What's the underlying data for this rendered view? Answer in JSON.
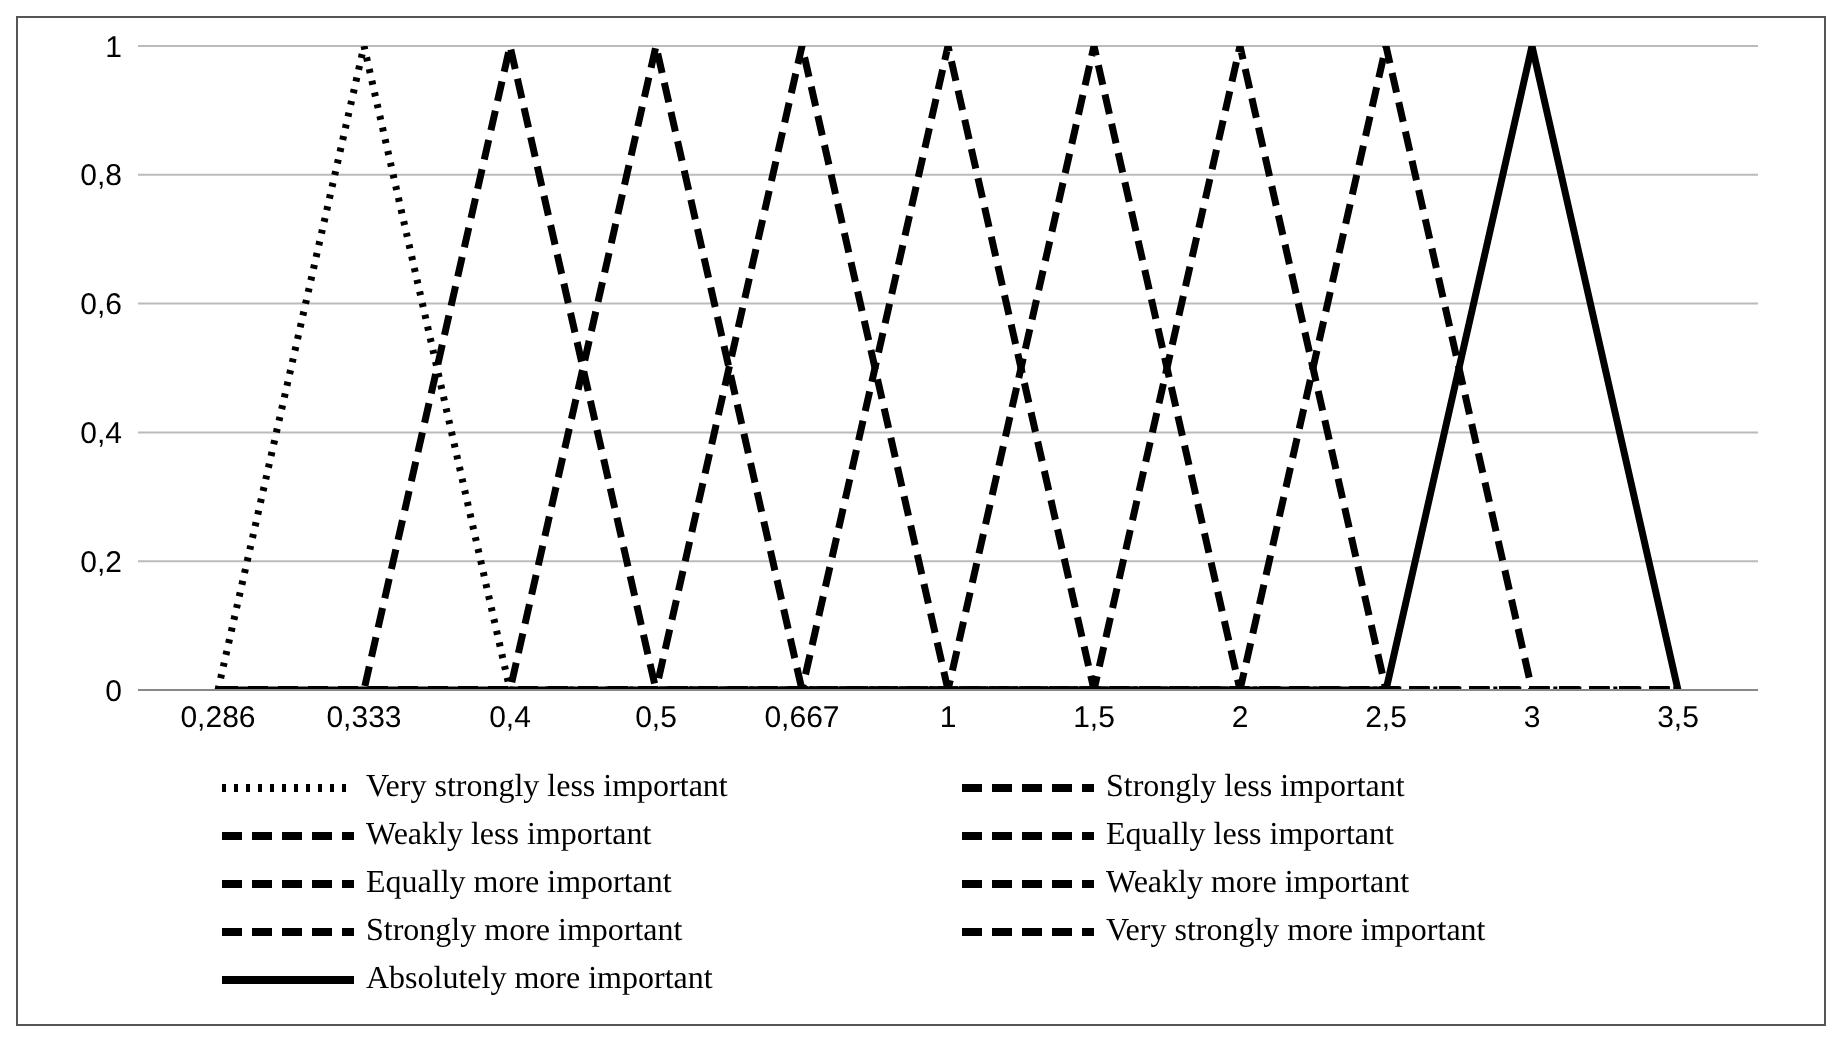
{
  "chart_data": {
    "type": "line",
    "categories": [
      "0,286",
      "0,333",
      "0,4",
      "0,5",
      "0,667",
      "1",
      "1,5",
      "2",
      "2,5",
      "3",
      "3,5"
    ],
    "ylim": [
      0,
      1
    ],
    "yticks": [
      0,
      {
        "value": 0.2,
        "label": "0,2"
      },
      {
        "value": 0.4,
        "label": "0,4"
      },
      {
        "value": 0.6,
        "label": "0,6"
      },
      {
        "value": 0.8,
        "label": "0,8"
      },
      1
    ],
    "grid": "y",
    "legend": "bottom",
    "marker": "none",
    "series": [
      {
        "name": "Very strongly less important",
        "color": "#000000",
        "line_style": "dotted",
        "values": [
          0,
          1,
          0,
          0,
          0,
          0,
          0,
          0,
          0,
          0,
          0
        ]
      },
      {
        "name": "Strongly less important",
        "color": "#000000",
        "line_style": "dashed",
        "values": [
          0,
          0,
          1,
          0,
          0,
          0,
          0,
          0,
          0,
          0,
          0
        ]
      },
      {
        "name": "Weakly less important",
        "color": "#000000",
        "line_style": "dashed",
        "values": [
          0,
          0,
          0,
          1,
          0,
          0,
          0,
          0,
          0,
          0,
          0
        ]
      },
      {
        "name": "Equally less important",
        "color": "#000000",
        "line_style": "dashed",
        "values": [
          0,
          0,
          0,
          0,
          1,
          0,
          0,
          0,
          0,
          0,
          0
        ]
      },
      {
        "name": "Equally more important",
        "color": "#000000",
        "line_style": "dashed",
        "values": [
          0,
          0,
          0,
          0,
          0,
          1,
          0,
          0,
          0,
          0,
          0
        ]
      },
      {
        "name": "Weakly more important",
        "color": "#000000",
        "line_style": "dashed",
        "values": [
          0,
          0,
          0,
          0,
          0,
          0,
          1,
          0,
          0,
          0,
          0
        ]
      },
      {
        "name": "Strongly more important",
        "color": "#000000",
        "line_style": "dashed",
        "values": [
          0,
          0,
          0,
          0,
          0,
          0,
          0,
          1,
          0,
          0,
          0
        ]
      },
      {
        "name": "Very strongly more important",
        "color": "#000000",
        "line_style": "dashed",
        "values": [
          0,
          0,
          0,
          0,
          0,
          0,
          0,
          0,
          1,
          0,
          0
        ]
      },
      {
        "name": "Absolutely more important",
        "color": "#000000",
        "line_style": "solid",
        "values": [
          0,
          0,
          0,
          0,
          0,
          0,
          0,
          0,
          0,
          1,
          0
        ]
      }
    ]
  }
}
